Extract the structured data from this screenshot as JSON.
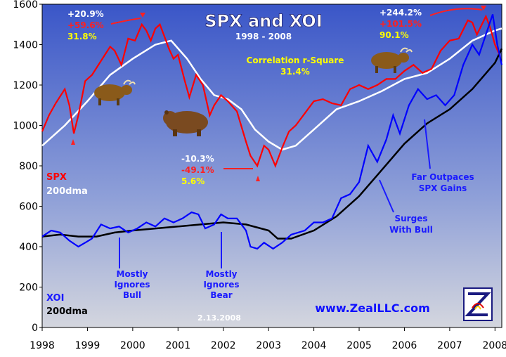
{
  "title": "SPX and XOI",
  "subtitle": "1998 - 2008",
  "correlation": {
    "line1": "Correlation r-Square",
    "line2": "31.4%"
  },
  "date_stamp": "2.13.2008",
  "website": "www.ZealLLC.com",
  "legend": {
    "spx": "SPX",
    "spx_ma": "200dma",
    "xoi": "XOI",
    "xoi_ma": "200dma"
  },
  "annotations": {
    "bull1": {
      "xoi": "+20.9%",
      "spx": "+59.6%",
      "corr": "31.8%"
    },
    "bear": {
      "xoi": "-10.3%",
      "spx": "-49.1%",
      "corr": "5.6%"
    },
    "bull2": {
      "xoi": "+244.2%",
      "spx": "+101.5%",
      "corr": "90.1%"
    }
  },
  "notes": {
    "mostly_ignores_bull": [
      "Mostly",
      "Ignores",
      "Bull"
    ],
    "mostly_ignores_bear": [
      "Mostly",
      "Ignores",
      "Bear"
    ],
    "surges_with_bull": [
      "Surges",
      "With Bull"
    ],
    "far_outpaces": [
      "Far Outpaces",
      "SPX Gains"
    ]
  },
  "colors": {
    "background_top": "#3a56c8",
    "background_bottom": "#c8ccd8",
    "spx": "#ff0000",
    "spx_ma": "#ffffff",
    "xoi": "#0000ff",
    "xoi_ma": "#000000"
  },
  "chart_data": {
    "type": "line",
    "x_ticks": [
      "1998",
      "1999",
      "2000",
      "2001",
      "2002",
      "2003",
      "2004",
      "2005",
      "2006",
      "2007",
      "2008"
    ],
    "y_ticks": [
      0,
      200,
      400,
      600,
      800,
      1000,
      1200,
      1400,
      1600
    ],
    "xlim": [
      1998.0,
      2008.15
    ],
    "ylim": [
      0,
      1600
    ],
    "grid": false,
    "series": [
      {
        "name": "SPX",
        "points": [
          [
            1998.0,
            970
          ],
          [
            1998.15,
            1050
          ],
          [
            1998.3,
            1110
          ],
          [
            1998.5,
            1180
          ],
          [
            1998.6,
            1100
          ],
          [
            1998.7,
            960
          ],
          [
            1998.8,
            1050
          ],
          [
            1998.95,
            1220
          ],
          [
            1999.1,
            1250
          ],
          [
            1999.3,
            1320
          ],
          [
            1999.5,
            1390
          ],
          [
            1999.6,
            1370
          ],
          [
            1999.75,
            1300
          ],
          [
            1999.9,
            1430
          ],
          [
            2000.05,
            1420
          ],
          [
            2000.2,
            1500
          ],
          [
            2000.3,
            1470
          ],
          [
            2000.4,
            1420
          ],
          [
            2000.5,
            1480
          ],
          [
            2000.6,
            1500
          ],
          [
            2000.7,
            1440
          ],
          [
            2000.8,
            1380
          ],
          [
            2000.9,
            1330
          ],
          [
            2001.0,
            1350
          ],
          [
            2001.15,
            1220
          ],
          [
            2001.25,
            1140
          ],
          [
            2001.4,
            1250
          ],
          [
            2001.55,
            1200
          ],
          [
            2001.7,
            1050
          ],
          [
            2001.8,
            1100
          ],
          [
            2001.95,
            1150
          ],
          [
            2002.1,
            1120
          ],
          [
            2002.3,
            1070
          ],
          [
            2002.5,
            920
          ],
          [
            2002.6,
            850
          ],
          [
            2002.75,
            800
          ],
          [
            2002.9,
            900
          ],
          [
            2003.0,
            880
          ],
          [
            2003.15,
            800
          ],
          [
            2003.3,
            890
          ],
          [
            2003.45,
            970
          ],
          [
            2003.6,
            1000
          ],
          [
            2003.8,
            1060
          ],
          [
            2004.0,
            1120
          ],
          [
            2004.2,
            1130
          ],
          [
            2004.4,
            1110
          ],
          [
            2004.6,
            1100
          ],
          [
            2004.8,
            1180
          ],
          [
            2005.0,
            1200
          ],
          [
            2005.2,
            1180
          ],
          [
            2005.4,
            1200
          ],
          [
            2005.6,
            1230
          ],
          [
            2005.8,
            1230
          ],
          [
            2006.0,
            1270
          ],
          [
            2006.2,
            1300
          ],
          [
            2006.4,
            1260
          ],
          [
            2006.6,
            1280
          ],
          [
            2006.8,
            1370
          ],
          [
            2007.0,
            1420
          ],
          [
            2007.2,
            1430
          ],
          [
            2007.4,
            1520
          ],
          [
            2007.5,
            1510
          ],
          [
            2007.6,
            1450
          ],
          [
            2007.8,
            1540
          ],
          [
            2007.9,
            1480
          ],
          [
            2008.0,
            1400
          ],
          [
            2008.1,
            1350
          ]
        ]
      },
      {
        "name": "SPX 200dma",
        "points": [
          [
            1998.0,
            900
          ],
          [
            1998.5,
            1000
          ],
          [
            1999.0,
            1120
          ],
          [
            1999.5,
            1250
          ],
          [
            2000.0,
            1330
          ],
          [
            2000.5,
            1400
          ],
          [
            2000.85,
            1420
          ],
          [
            2001.2,
            1330
          ],
          [
            2001.5,
            1230
          ],
          [
            2001.8,
            1150
          ],
          [
            2002.1,
            1130
          ],
          [
            2002.4,
            1080
          ],
          [
            2002.7,
            980
          ],
          [
            2003.0,
            920
          ],
          [
            2003.3,
            880
          ],
          [
            2003.6,
            900
          ],
          [
            2004.0,
            980
          ],
          [
            2004.5,
            1080
          ],
          [
            2005.0,
            1120
          ],
          [
            2005.5,
            1170
          ],
          [
            2006.0,
            1230
          ],
          [
            2006.5,
            1260
          ],
          [
            2007.0,
            1330
          ],
          [
            2007.5,
            1420
          ],
          [
            2008.0,
            1470
          ],
          [
            2008.15,
            1480
          ]
        ]
      },
      {
        "name": "XOI",
        "points": [
          [
            1998.0,
            450
          ],
          [
            1998.2,
            480
          ],
          [
            1998.4,
            470
          ],
          [
            1998.6,
            430
          ],
          [
            1998.8,
            400
          ],
          [
            1998.95,
            420
          ],
          [
            1999.1,
            440
          ],
          [
            1999.3,
            510
          ],
          [
            1999.5,
            490
          ],
          [
            1999.7,
            500
          ],
          [
            1999.9,
            470
          ],
          [
            2000.1,
            490
          ],
          [
            2000.3,
            520
          ],
          [
            2000.5,
            500
          ],
          [
            2000.7,
            540
          ],
          [
            2000.9,
            520
          ],
          [
            2001.1,
            540
          ],
          [
            2001.3,
            570
          ],
          [
            2001.45,
            560
          ],
          [
            2001.6,
            490
          ],
          [
            2001.8,
            510
          ],
          [
            2001.95,
            560
          ],
          [
            2002.1,
            540
          ],
          [
            2002.3,
            540
          ],
          [
            2002.5,
            480
          ],
          [
            2002.6,
            400
          ],
          [
            2002.75,
            390
          ],
          [
            2002.9,
            420
          ],
          [
            2003.1,
            390
          ],
          [
            2003.3,
            420
          ],
          [
            2003.5,
            460
          ],
          [
            2003.8,
            480
          ],
          [
            2004.0,
            520
          ],
          [
            2004.2,
            520
          ],
          [
            2004.4,
            540
          ],
          [
            2004.6,
            640
          ],
          [
            2004.8,
            660
          ],
          [
            2005.0,
            720
          ],
          [
            2005.2,
            900
          ],
          [
            2005.4,
            820
          ],
          [
            2005.6,
            930
          ],
          [
            2005.75,
            1050
          ],
          [
            2005.9,
            960
          ],
          [
            2006.1,
            1100
          ],
          [
            2006.3,
            1180
          ],
          [
            2006.5,
            1130
          ],
          [
            2006.7,
            1150
          ],
          [
            2006.9,
            1100
          ],
          [
            2007.1,
            1150
          ],
          [
            2007.3,
            1300
          ],
          [
            2007.5,
            1400
          ],
          [
            2007.65,
            1350
          ],
          [
            2007.8,
            1450
          ],
          [
            2007.95,
            1550
          ],
          [
            2008.05,
            1400
          ],
          [
            2008.15,
            1300
          ]
        ]
      },
      {
        "name": "XOI 200dma",
        "points": [
          [
            1998.0,
            450
          ],
          [
            1998.4,
            460
          ],
          [
            1998.8,
            450
          ],
          [
            1999.2,
            450
          ],
          [
            1999.6,
            470
          ],
          [
            2000.0,
            480
          ],
          [
            2000.5,
            490
          ],
          [
            2001.0,
            500
          ],
          [
            2001.5,
            510
          ],
          [
            2002.0,
            520
          ],
          [
            2002.5,
            510
          ],
          [
            2003.0,
            480
          ],
          [
            2003.2,
            440
          ],
          [
            2003.5,
            440
          ],
          [
            2004.0,
            480
          ],
          [
            2004.5,
            550
          ],
          [
            2005.0,
            650
          ],
          [
            2005.5,
            780
          ],
          [
            2006.0,
            910
          ],
          [
            2006.5,
            1010
          ],
          [
            2007.0,
            1080
          ],
          [
            2007.5,
            1180
          ],
          [
            2008.0,
            1310
          ],
          [
            2008.15,
            1380
          ]
        ]
      }
    ]
  }
}
